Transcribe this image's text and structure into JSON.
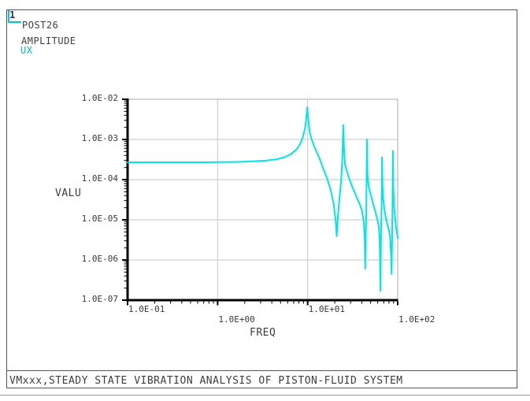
{
  "pane": {
    "number": "1"
  },
  "header": {
    "routine": "POST26",
    "quantity": "AMPLITUDE",
    "variable": "UX"
  },
  "caption": "VMxxx,STEADY STATE VIBRATION ANALYSIS OF PISTON-FLUID SYSTEM",
  "colors": {
    "curve": "#00e6e6",
    "accent_cyan": "#00c9c9",
    "pane_number": "#28288c",
    "text": "#3c3c46",
    "grid": "#c6c6c6",
    "plot_edge": "#aaaaaa",
    "axis": "#000000",
    "border": "#555555"
  },
  "chart_data": {
    "type": "line",
    "title": "",
    "xlabel": "FREQ",
    "ylabel": "VALU",
    "x_scale": "log",
    "y_scale": "log",
    "xlim": [
      0.1,
      100
    ],
    "ylim": [
      1e-07,
      0.01
    ],
    "grid": true,
    "legend": "none",
    "x_ticks": [
      {
        "value": 0.1,
        "label": "1.0E-01",
        "row": 1
      },
      {
        "value": 1,
        "label": "1.0E+00",
        "row": 2
      },
      {
        "value": 10,
        "label": "1.0E+01",
        "row": 1
      },
      {
        "value": 100,
        "label": "1.0E+02",
        "row": 2
      }
    ],
    "y_ticks": [
      {
        "value": 0.01,
        "label": "1.0E-02"
      },
      {
        "value": 0.001,
        "label": "1.0E-03"
      },
      {
        "value": 0.0001,
        "label": "1.0E-04"
      },
      {
        "value": 1e-05,
        "label": "1.0E-05"
      },
      {
        "value": 1e-06,
        "label": "1.0E-06"
      },
      {
        "value": 1e-07,
        "label": "1.0E-07"
      }
    ],
    "static_amplitude": 0.00027,
    "resonance_freqs_hz": [
      9.9,
      24.8,
      45.5,
      67.0,
      88.5
    ],
    "antiresonance_freqs_hz": [
      21.0,
      43.5,
      64.3,
      85.5
    ],
    "series": [
      {
        "name": "UX",
        "color": "#00e6e6",
        "points": [
          [
            0.1,
            0.00027
          ],
          [
            0.2,
            0.00027
          ],
          [
            0.4,
            0.00027
          ],
          [
            0.7,
            0.00027
          ],
          [
            1.0,
            0.000272
          ],
          [
            1.5,
            0.000275
          ],
          [
            2.0,
            0.00028
          ],
          [
            2.8,
            0.00029
          ],
          [
            3.5,
            0.0003
          ],
          [
            4.5,
            0.00032
          ],
          [
            5.5,
            0.00036
          ],
          [
            6.5,
            0.00043
          ],
          [
            7.5,
            0.00056
          ],
          [
            8.2,
            0.00075
          ],
          [
            8.8,
            0.0011
          ],
          [
            9.3,
            0.0018
          ],
          [
            9.6,
            0.003
          ],
          [
            9.9,
            0.0063
          ],
          [
            10.15,
            0.0032
          ],
          [
            10.5,
            0.0016
          ],
          [
            11.0,
            0.00105
          ],
          [
            12.0,
            0.00062
          ],
          [
            13.5,
            0.00034
          ],
          [
            15.0,
            0.00018
          ],
          [
            16.5,
            0.000105
          ],
          [
            18.0,
            5.5e-05
          ],
          [
            19.5,
            2.4e-05
          ],
          [
            20.5,
            9e-06
          ],
          [
            21.0,
            3.9e-06
          ],
          [
            21.6,
            1.1e-05
          ],
          [
            22.5,
            3.2e-05
          ],
          [
            23.5,
            9e-05
          ],
          [
            24.3,
            0.00035
          ],
          [
            24.8,
            0.0023
          ],
          [
            25.3,
            0.0006
          ],
          [
            26.0,
            0.00024
          ],
          [
            27.5,
            0.00015
          ],
          [
            29.0,
            0.000105
          ],
          [
            31,
            7e-05
          ],
          [
            33,
            5e-05
          ],
          [
            35,
            3.6e-05
          ],
          [
            38,
            2.4e-05
          ],
          [
            40,
            1.7e-05
          ],
          [
            42,
            9e-06
          ],
          [
            43.0,
            3.5e-06
          ],
          [
            43.5,
            6e-07
          ],
          [
            44.0,
            2.5e-06
          ],
          [
            44.8,
            1.4e-05
          ],
          [
            45.5,
            0.001
          ],
          [
            46.2,
            0.00013
          ],
          [
            47.5,
            7e-05
          ],
          [
            50,
            4.4e-05
          ],
          [
            53,
            2.6e-05
          ],
          [
            56,
            1.7e-05
          ],
          [
            59,
            1.1e-05
          ],
          [
            61.5,
            7e-06
          ],
          [
            63.0,
            3.2e-06
          ],
          [
            64.3,
            1.7e-07
          ],
          [
            65.3,
            4e-06
          ],
          [
            66.3,
            2.5e-05
          ],
          [
            67.0,
            0.00036
          ],
          [
            67.8,
            7e-05
          ],
          [
            69,
            3.3e-05
          ],
          [
            71,
            1.9e-05
          ],
          [
            74,
            1.1e-05
          ],
          [
            77,
            7.5e-06
          ],
          [
            80,
            5.5e-06
          ],
          [
            82.5,
            3.5e-06
          ],
          [
            84.5,
            1.3e-06
          ],
          [
            85.5,
            4.5e-07
          ],
          [
            86.5,
            2.5e-06
          ],
          [
            87.6,
            2e-05
          ],
          [
            88.5,
            0.00052
          ],
          [
            89.4,
            6e-05
          ],
          [
            91,
            2.4e-05
          ],
          [
            93.5,
            1.1e-05
          ],
          [
            96.5,
            6e-06
          ],
          [
            100,
            3.5e-06
          ]
        ]
      }
    ]
  }
}
